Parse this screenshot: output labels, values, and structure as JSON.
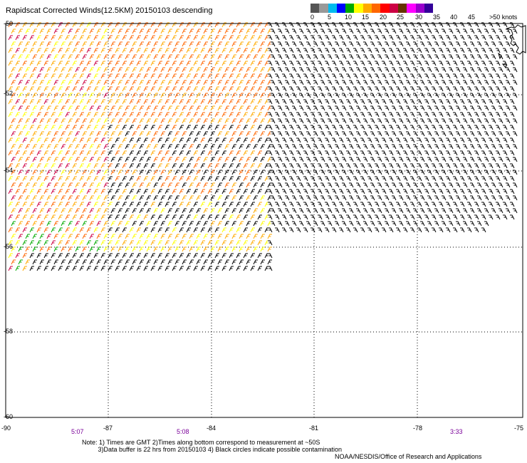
{
  "title": "Rapidscat Corrected Winds(12.5KM) 20150103 descending",
  "legend": {
    "colors": [
      "#555555",
      "#999999",
      "#00bbee",
      "#0000ff",
      "#00aa00",
      "#ffff00",
      "#ffaa00",
      "#ff6600",
      "#ff0000",
      "#cc0044",
      "#663300",
      "#ff00ff",
      "#9900cc",
      "#330099"
    ],
    "labels": [
      "0",
      "5",
      "10",
      "15",
      "20",
      "25",
      "30",
      "35",
      "40",
      "45",
      ">50 knots"
    ]
  },
  "axes": {
    "lat_labels": [
      "-50",
      "-52",
      "-54",
      "-56",
      "-58",
      "-60"
    ],
    "lon_labels": [
      "-90",
      "-87",
      "-84",
      "-81",
      "-78",
      "-75"
    ],
    "times": [
      "5:07",
      "5:08",
      "3:33"
    ]
  },
  "notes": [
    "Note: 1) Times are GMT 2)Times along bottom correspond to measurement at ~50S",
    "         3)Data buffer is 22 hrs from 20150103 4) Black circles indicate possible contamination",
    "NOAA/NESDIS/Office of Research and Applications"
  ]
}
